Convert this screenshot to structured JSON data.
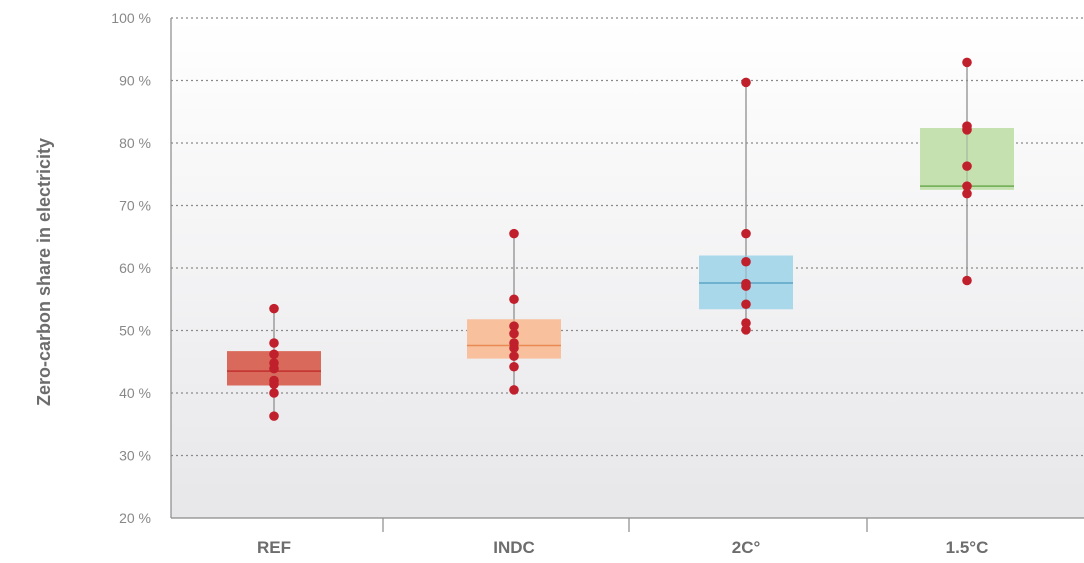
{
  "chart_data": {
    "type": "box",
    "ylabel": "Zero-carbon share in electricity",
    "xlabel": "",
    "ylim": [
      20,
      100
    ],
    "yticks": [
      20,
      30,
      40,
      50,
      60,
      70,
      80,
      90,
      100
    ],
    "ytick_labels": [
      "20 %",
      "30 %",
      "40 %",
      "50 %",
      "60 %",
      "70 %",
      "80 %",
      "90 %",
      "100 %"
    ],
    "grid": true,
    "categories": [
      "REF",
      "INDC",
      "2C°",
      "1.5°C"
    ],
    "boxes": [
      {
        "category": "REF",
        "q1": 41.2,
        "median": 43.5,
        "q3": 46.7,
        "min": 36.3,
        "max": 53.5,
        "color": "#d9695a",
        "median_color": "#c0302f",
        "points": [
          36.3,
          40.0,
          41.4,
          42.0,
          43.9,
          44.8,
          46.2,
          48.0,
          53.5
        ]
      },
      {
        "category": "INDC",
        "q1": 45.5,
        "median": 47.6,
        "q3": 51.8,
        "min": 40.5,
        "max": 65.5,
        "color": "#f8c09c",
        "median_color": "#e88a52",
        "points": [
          40.5,
          44.2,
          45.9,
          47.2,
          48.0,
          49.5,
          50.7,
          55.0,
          65.5
        ]
      },
      {
        "category": "2C°",
        "q1": 53.4,
        "median": 57.6,
        "q3": 62.0,
        "min": 50.1,
        "max": 89.7,
        "color": "#a8d8ea",
        "median_color": "#5aa5c8",
        "points": [
          50.1,
          51.2,
          54.2,
          57.1,
          57.5,
          61.0,
          65.5,
          89.7
        ]
      },
      {
        "category": "1.5°C",
        "q1": 72.5,
        "median": 73.1,
        "q3": 82.4,
        "min": 58.0,
        "max": 92.9,
        "color": "#c5e1b0",
        "median_color": "#6daa4f",
        "points": [
          58.0,
          71.9,
          73.1,
          76.3,
          82.1,
          82.7,
          92.9
        ]
      }
    ],
    "point_color": "#c0202c",
    "whisker_color": "#8f8f8f"
  }
}
